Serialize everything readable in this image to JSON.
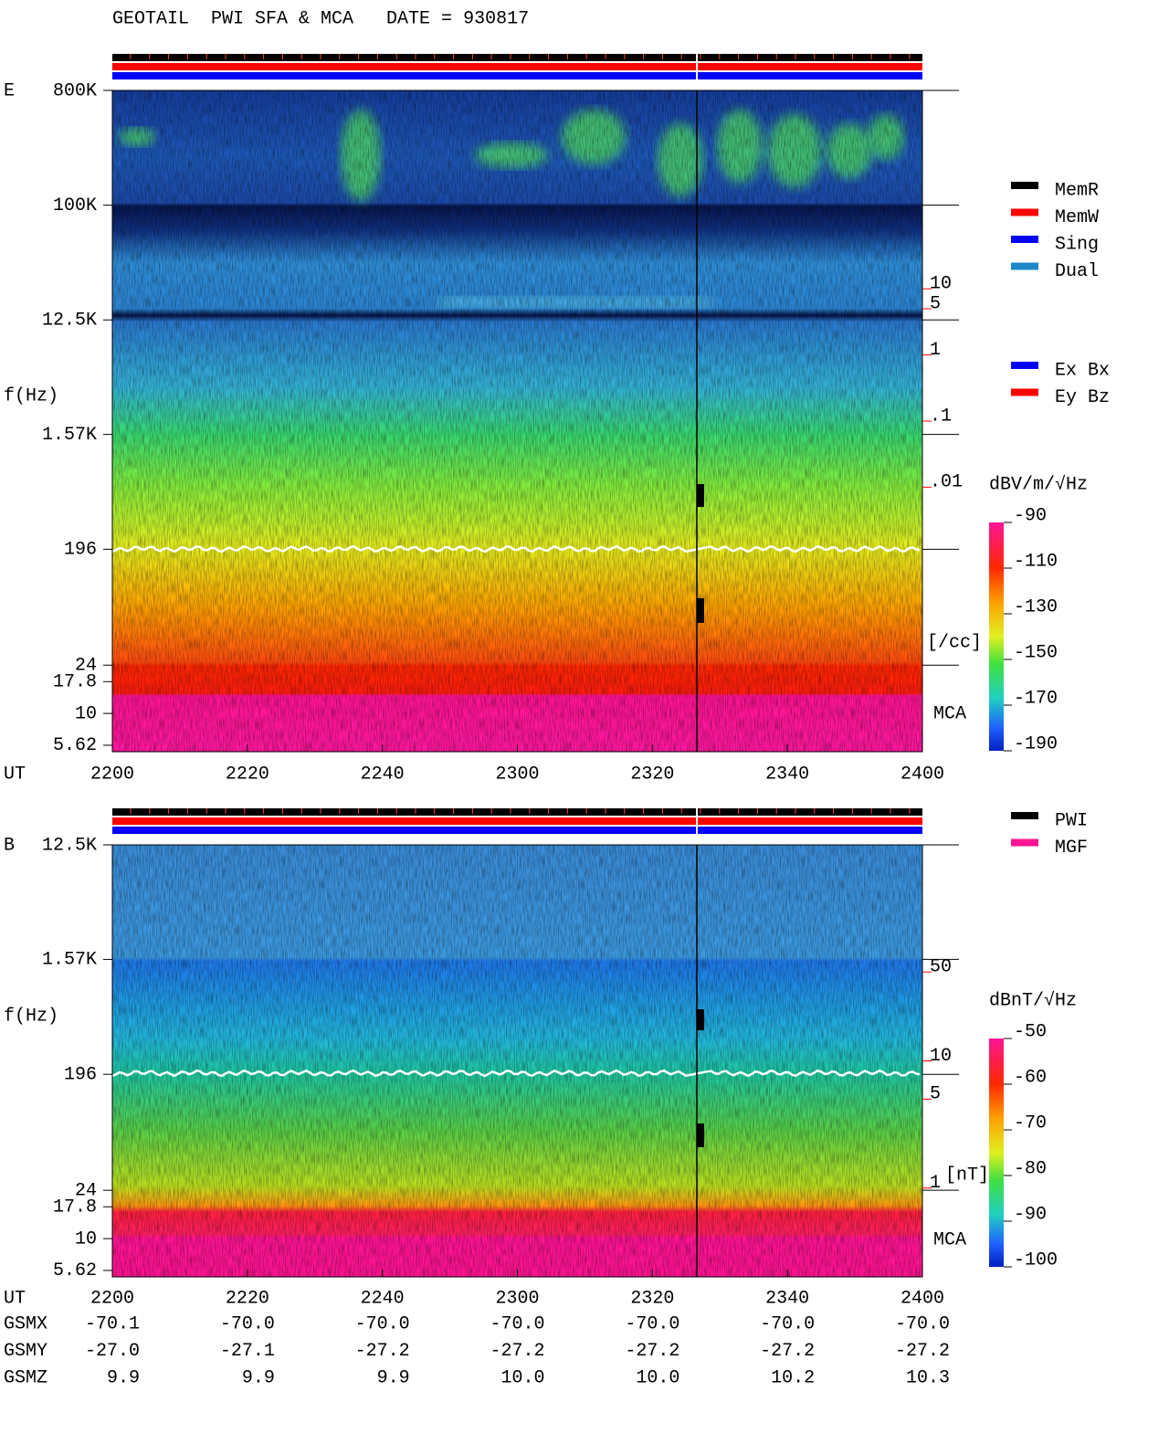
{
  "title": "GEOTAIL  PWI SFA & MCA   DATE = 930817",
  "chart_data": [
    {
      "type": "spectrogram",
      "panel_label": "E",
      "ylabel": "f(Hz)",
      "xlabel": "UT",
      "ylog": true,
      "ylim": [
        5,
        800000
      ],
      "yticks": [
        {
          "value": 800000,
          "label": "800K"
        },
        {
          "value": 100000,
          "label": "100K"
        },
        {
          "value": 12500,
          "label": "12.5K"
        },
        {
          "value": 1570,
          "label": "1.57K"
        },
        196,
        24,
        17.8,
        10,
        5.62
      ],
      "xlim": [
        0,
        120
      ],
      "xticks": [
        {
          "value": 0,
          "label": "2200"
        },
        {
          "value": 20,
          "label": "2220"
        },
        {
          "value": 40,
          "label": "2240"
        },
        {
          "value": 60,
          "label": "2300"
        },
        {
          "value": 80,
          "label": "2320"
        },
        {
          "value": 100,
          "label": "2340"
        },
        {
          "value": 120,
          "label": "2400"
        }
      ],
      "y2lim": [
        1e-06,
        10000
      ],
      "y2ticks": [
        10,
        5,
        1,
        {
          "value": 0.1,
          "label": ".1"
        },
        {
          "value": 0.01,
          "label": ".01"
        }
      ],
      "y2label": "[/cc]",
      "y2color": "#ff0000",
      "mca_label": "MCA",
      "colorbar": {
        "label": "dBV/m/√Hz",
        "lim": [
          -190,
          -90
        ],
        "ticks": [
          -90,
          -110,
          -130,
          -150,
          -170,
          -190
        ]
      },
      "legend": [
        {
          "name": "MemR",
          "color": "#000000"
        },
        {
          "name": "MemW",
          "color": "#ff0000"
        },
        {
          "name": "Sing",
          "color": "#0000ff"
        },
        {
          "name": "Dual",
          "color": "#1e88c8"
        }
      ],
      "legend2": [
        {
          "name": "Ex Bx",
          "color": "#0000ff"
        },
        {
          "name": "Ey Bz",
          "color": "#ff0000"
        }
      ]
    },
    {
      "type": "spectrogram",
      "panel_label": "B",
      "ylabel": "f(Hz)",
      "xlabel": "UT",
      "ylog": true,
      "ylim": [
        5,
        12500
      ],
      "yticks": [
        {
          "value": 12500,
          "label": "12.5K"
        },
        {
          "value": 1570,
          "label": "1.57K"
        },
        196,
        24,
        17.8,
        10,
        5.62
      ],
      "xlim": [
        0,
        120
      ],
      "xticks": [
        {
          "value": 0,
          "label": "2200"
        },
        {
          "value": 20,
          "label": "2220"
        },
        {
          "value": 40,
          "label": "2240"
        },
        {
          "value": 60,
          "label": "2300"
        },
        {
          "value": 80,
          "label": "2320"
        },
        {
          "value": 100,
          "label": "2340"
        },
        {
          "value": 120,
          "label": "2400"
        }
      ],
      "y2lim": [
        0.2,
        500
      ],
      "y2ticks": [
        50,
        10,
        5,
        1
      ],
      "y2label": "[nT]",
      "y2color": "#ff0000",
      "mca_label": "MCA",
      "colorbar": {
        "label": "dBnT/√Hz",
        "lim": [
          -100,
          -50
        ],
        "ticks": [
          -50,
          -60,
          -70,
          -80,
          -90,
          -100
        ]
      },
      "legend": [
        {
          "name": "PWI",
          "color": "#000000"
        },
        {
          "name": "MGF",
          "color": "#ff1493"
        }
      ]
    }
  ],
  "orbit": [
    {
      "name": "GSMX",
      "values": [
        "-70.1",
        "-70.0",
        "-70.0",
        "-70.0",
        "-70.0",
        "-70.0",
        "-70.0"
      ]
    },
    {
      "name": "GSMY",
      "values": [
        "-27.0",
        "-27.1",
        "-27.2",
        "-27.2",
        "-27.2",
        "-27.2",
        "-27.2"
      ]
    },
    {
      "name": "GSMZ",
      "values": [
        "9.9",
        "9.9",
        "9.9",
        "10.0",
        "10.0",
        "10.2",
        "10.3"
      ]
    }
  ]
}
